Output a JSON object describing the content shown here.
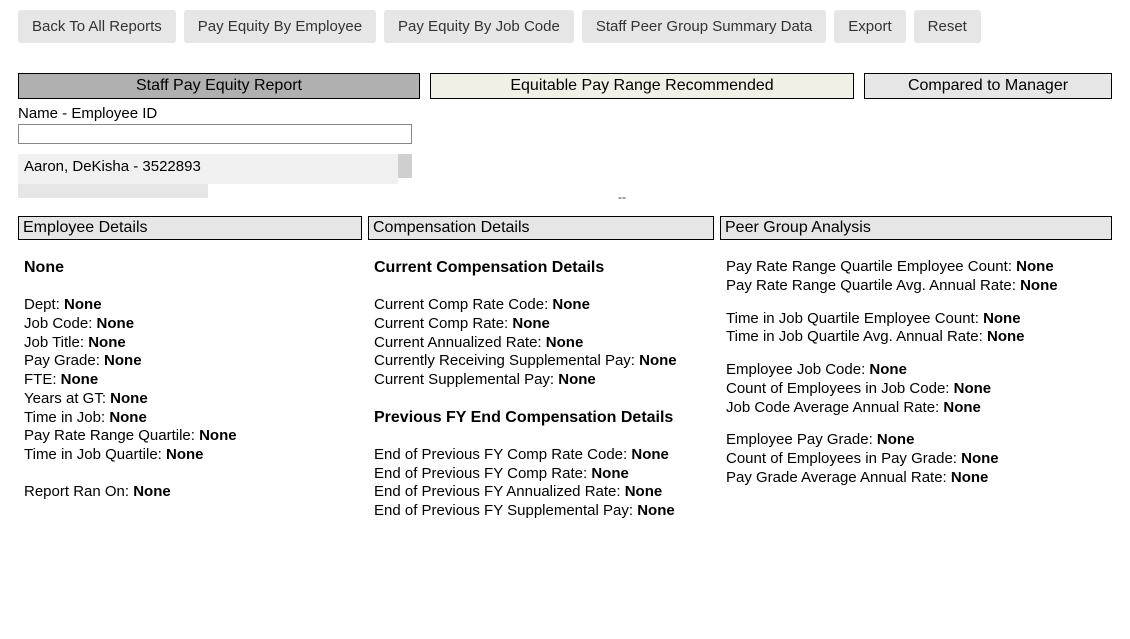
{
  "toolbar": {
    "back": "Back To All Reports",
    "byEmployee": "Pay Equity By Employee",
    "byJobCode": "Pay Equity By Job Code",
    "peerSummary": "Staff Peer Group Summary Data",
    "export": "Export",
    "reset": "Reset"
  },
  "banners": {
    "active": "Staff Pay Equity Report",
    "mid": "Equitable Pay Range Recommended",
    "right": "Compared to Manager"
  },
  "search": {
    "label": "Name - Employee ID",
    "value": "",
    "selected": "Aaron, DeKisha - 3522893"
  },
  "dash": "--",
  "emp": {
    "header": "Employee Details",
    "none": "None",
    "deptLabel": "Dept: ",
    "dept": "None",
    "jobCodeLabel": "Job Code: ",
    "jobCode": "None",
    "jobTitleLabel": "Job Title: ",
    "jobTitle": "None",
    "payGradeLabel": "Pay Grade: ",
    "payGrade": "None",
    "fteLabel": "FTE: ",
    "fte": "None",
    "yearsLabel": "Years at GT: ",
    "years": "None",
    "timeJobLabel": "Time in Job: ",
    "timeJob": "None",
    "payQLabel": "Pay Rate Range Quartile: ",
    "payQ": "None",
    "timeQLabel": "Time in Job Quartile: ",
    "timeQ": "None",
    "ranLabel": "Report Ran On: ",
    "ran": "None"
  },
  "comp": {
    "header": "Compensation Details",
    "curHead": "Current Compensation Details",
    "curCodeLabel": "Current Comp Rate Code: ",
    "curCode": "None",
    "curRateLabel": "Current Comp Rate: ",
    "curRate": "None",
    "curAnnLabel": "Current Annualized Rate: ",
    "curAnn": "None",
    "curSuppRecvLabel": "Currently Receiving Supplemental Pay: ",
    "curSuppRecv": "None",
    "curSuppLabel": "Current Supplemental Pay: ",
    "curSupp": "None",
    "prevHead": "Previous FY End Compensation Details",
    "prevCodeLabel": "End of Previous FY Comp Rate Code: ",
    "prevCode": "None",
    "prevRateLabel": "End of Previous FY Comp Rate: ",
    "prevRate": "None",
    "prevAnnLabel": "End of Previous FY Annualized Rate: ",
    "prevAnn": "None",
    "prevSuppLabel": "End of Previous FY Supplemental Pay: ",
    "prevSupp": "None"
  },
  "peer": {
    "header": "Peer Group Analysis",
    "payCountLabel": "Pay Rate Range Quartile Employee Count: ",
    "payCount": "None",
    "payAvgLabel": "Pay Rate Range Quartile Avg. Annual Rate: ",
    "payAvg": "None",
    "timeCountLabel": "Time in Job Quartile Employee Count: ",
    "timeCount": "None",
    "timeAvgLabel": "Time in Job Quartile Avg. Annual Rate: ",
    "timeAvg": "None",
    "empJobCodeLabel": "Employee Job Code: ",
    "empJobCode": "None",
    "countJobCodeLabel": "Count of Employees in Job Code: ",
    "countJobCode": "None",
    "jobCodeAvgLabel": "Job Code Average Annual Rate: ",
    "jobCodeAvg": "None",
    "empPayGradeLabel": "Employee Pay Grade: ",
    "empPayGrade": "None",
    "countPayGradeLabel": "Count of Employees in Pay Grade: ",
    "countPayGrade": "None",
    "payGradeAvgLabel": "Pay Grade Average Annual Rate: ",
    "payGradeAvg": "None"
  }
}
